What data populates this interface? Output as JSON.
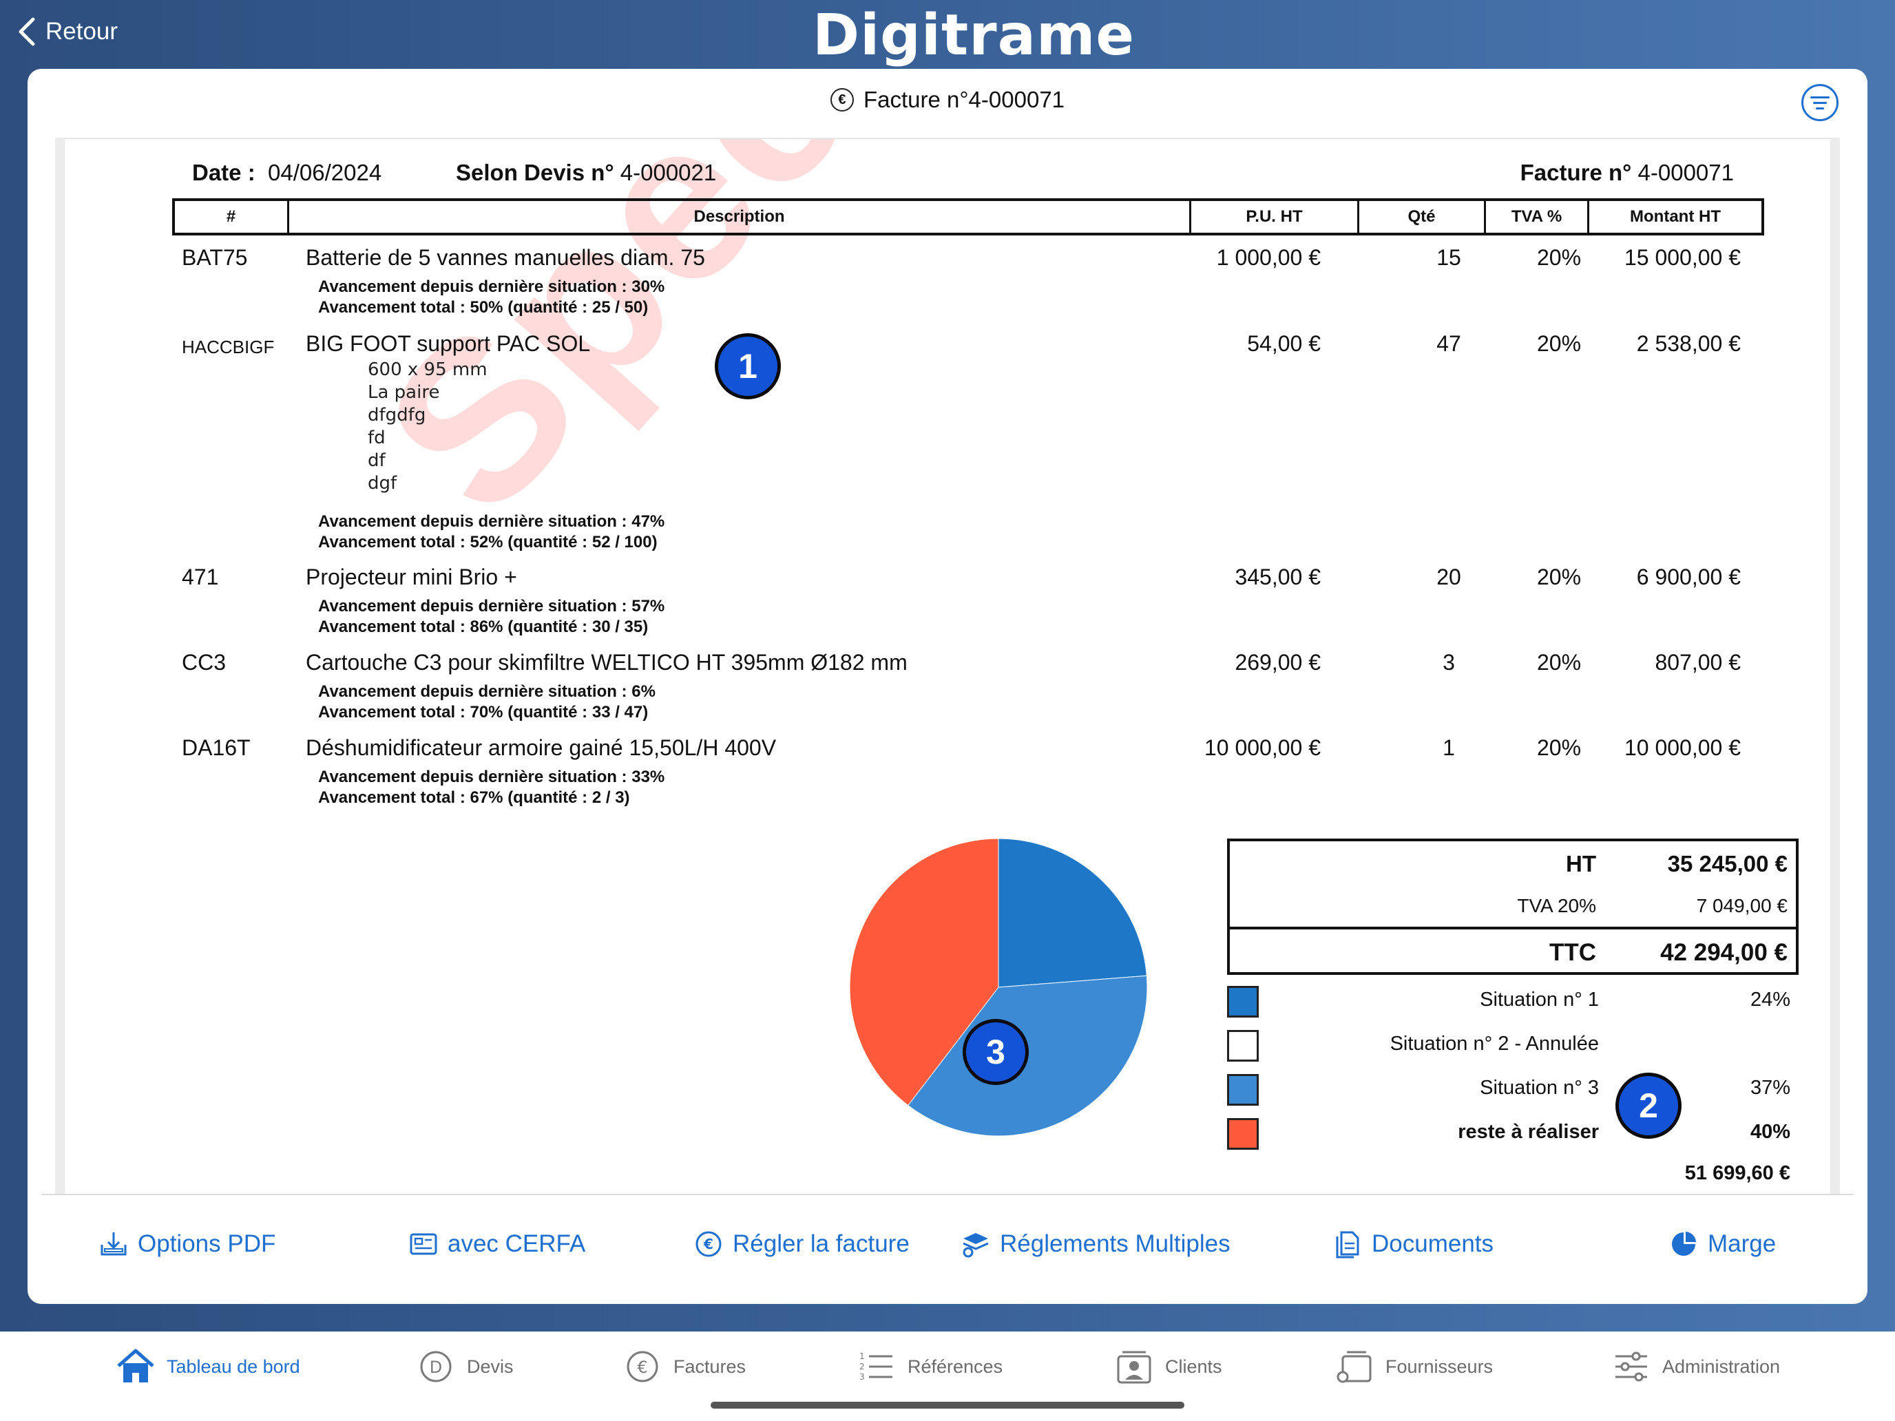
{
  "topbar": {
    "back_label": "Retour",
    "logo": "Digitrame"
  },
  "card": {
    "title": "Facture n°4-000071"
  },
  "doc": {
    "watermark": "Speci",
    "date_label": "Date :",
    "date_value": "04/06/2024",
    "devis_label": "Selon Devis n°",
    "devis_value": "4-000021",
    "facture_label": "Facture n°",
    "facture_value": "4-000071",
    "columns": [
      "#",
      "Description",
      "P.U. HT",
      "Qté",
      "TVA %",
      "Montant HT"
    ],
    "items": [
      {
        "code": "BAT75",
        "description": "Batterie de 5 vannes manuelles diam. 75",
        "pu": "1 000,00 €",
        "qte": "15",
        "tva": "20%",
        "montant": "15 000,00 €",
        "sub": [],
        "progress_1": "Avancement depuis dernière situation : 30%",
        "progress_2": "Avancement total : 50% (quantité : 25 / 50)"
      },
      {
        "code": "HACCBIGF",
        "description": "BIG FOOT support PAC SOL",
        "pu": "54,00 €",
        "qte": "47",
        "tva": "20%",
        "montant": "2 538,00 €",
        "sub": [
          "600 x 95 mm",
          "La paire",
          "dfgdfg",
          "fd",
          "df",
          "dgf"
        ],
        "progress_1": "Avancement depuis dernière situation : 47%",
        "progress_2": "Avancement total : 52% (quantité : 52 / 100)"
      },
      {
        "code": "471",
        "description": "Projecteur mini Brio +",
        "pu": "345,00 €",
        "qte": "20",
        "tva": "20%",
        "montant": "6 900,00 €",
        "sub": [],
        "progress_1": "Avancement depuis dernière situation : 57%",
        "progress_2": "Avancement total : 86% (quantité : 30 / 35)"
      },
      {
        "code": "CC3",
        "description": "Cartouche C3 pour skimfiltre WELTICO HT 395mm Ø182 mm",
        "pu": "269,00 €",
        "qte": "3",
        "tva": "20%",
        "montant": "807,00 €",
        "sub": [],
        "progress_1": "Avancement depuis dernière situation : 6%",
        "progress_2": "Avancement total : 70% (quantité : 33 / 47)"
      },
      {
        "code": "DA16T",
        "description": "Déshumidificateur armoire gainé 15,50L/H 400V",
        "pu": "10 000,00 €",
        "qte": "1",
        "tva": "20%",
        "montant": "10 000,00 €",
        "sub": [],
        "progress_1": "Avancement depuis dernière situation : 33%",
        "progress_2": "Avancement total : 67% (quantité : 2 / 3)"
      }
    ],
    "totals": {
      "ht_label": "HT",
      "ht_value": "35 245,00 €",
      "tva_label": "TVA 20%",
      "tva_value": "7 049,00 €",
      "ttc_label": "TTC",
      "ttc_value": "42 294,00 €"
    },
    "legend": [
      {
        "label": "Situation n° 1",
        "pct": "24%",
        "color": "#1f77c8"
      },
      {
        "label": "Situation n° 2 - Annulée",
        "pct": "",
        "color": "#ffffff"
      },
      {
        "label": "Situation n° 3",
        "pct": "37%",
        "color": "#3d8ad4"
      },
      {
        "label": "reste à réaliser",
        "pct": "40%",
        "color": "#ff5a3c"
      }
    ],
    "grand_total": "51 699,60 €",
    "badges": [
      "1",
      "2",
      "3"
    ]
  },
  "chart_data": {
    "type": "pie",
    "categories": [
      "Situation n° 1",
      "Situation n° 3",
      "reste à réaliser"
    ],
    "values": [
      24,
      37,
      40
    ],
    "colors": [
      "#1f77c8",
      "#3d8ad4",
      "#ff5a3c"
    ]
  },
  "actions": [
    "Options PDF",
    "avec CERFA",
    "Régler la facture",
    "Réglements Multiples",
    "Documents",
    "Marge"
  ],
  "tabs": [
    "Tableau de bord",
    "Devis",
    "Factures",
    "Références",
    "Clients",
    "Fournisseurs",
    "Administration"
  ],
  "colors": {
    "accent": "#1e6fd0",
    "badge": "#1253d8"
  }
}
